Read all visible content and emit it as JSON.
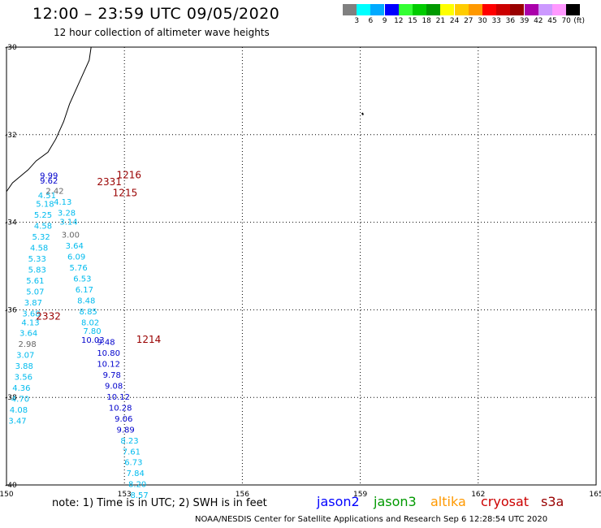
{
  "header": {
    "title": "12:00 – 23:59 UTC 09/05/2020",
    "subtitle": "12 hour collection of altimeter wave heights"
  },
  "color_scale": {
    "labels": [
      "3",
      "6",
      "9",
      "12",
      "15",
      "18",
      "21",
      "24",
      "27",
      "30",
      "33",
      "36",
      "39",
      "42",
      "45",
      "70"
    ],
    "unit": "(ft)",
    "colors": [
      "#808080",
      "#00ffff",
      "#00aaff",
      "#0000ff",
      "#33ff33",
      "#00cc00",
      "#009900",
      "#ffff00",
      "#ffcc00",
      "#ff9900",
      "#ff0000",
      "#cc0000",
      "#990000",
      "#aa00aa",
      "#cc99ff",
      "#ff99ff",
      "#000000"
    ]
  },
  "axes": {
    "lat_labels": [
      "-30",
      "-32",
      "-34",
      "-36",
      "-38",
      "-40"
    ],
    "lon_labels": [
      "150",
      "153",
      "156",
      "159",
      "162",
      "165"
    ]
  },
  "passes": [
    {
      "label": "1216",
      "lat": -33.0,
      "lon": 152.8,
      "color": "#990000"
    },
    {
      "label": "2331",
      "lat": -33.15,
      "lon": 152.3,
      "color": "#990000"
    },
    {
      "label": "1215",
      "lat": -33.4,
      "lon": 152.7,
      "color": "#990000"
    },
    {
      "label": "2332",
      "lat": -36.22,
      "lon": 150.75,
      "color": "#990000"
    },
    {
      "label": "1214",
      "lat": -36.75,
      "lon": 153.3,
      "color": "#990000"
    }
  ],
  "track_values": [
    {
      "v": "9.99",
      "lat": -33.0,
      "lon": 150.85,
      "c": "#0000cc"
    },
    {
      "v": "9.62",
      "lat": -33.12,
      "lon": 150.85,
      "c": "#0000cc"
    },
    {
      "v": "4.51",
      "lat": -33.45,
      "lon": 150.8,
      "c": "#00bbee"
    },
    {
      "v": "5.18",
      "lat": -33.65,
      "lon": 150.75,
      "c": "#00bbee"
    },
    {
      "v": "5.25",
      "lat": -33.9,
      "lon": 150.7,
      "c": "#00bbee"
    },
    {
      "v": "4.58",
      "lat": -34.15,
      "lon": 150.7,
      "c": "#00bbee"
    },
    {
      "v": "5.32",
      "lat": -34.4,
      "lon": 150.65,
      "c": "#00bbee"
    },
    {
      "v": "4.58",
      "lat": -34.65,
      "lon": 150.6,
      "c": "#00bbee"
    },
    {
      "v": "5.33",
      "lat": -34.9,
      "lon": 150.55,
      "c": "#00bbee"
    },
    {
      "v": "5.83",
      "lat": -35.15,
      "lon": 150.55,
      "c": "#00bbee"
    },
    {
      "v": "5.61",
      "lat": -35.4,
      "lon": 150.5,
      "c": "#00bbee"
    },
    {
      "v": "5.07",
      "lat": -35.65,
      "lon": 150.5,
      "c": "#00bbee"
    },
    {
      "v": "3.87",
      "lat": -35.9,
      "lon": 150.45,
      "c": "#00bbee"
    },
    {
      "v": "3.68",
      "lat": -36.15,
      "lon": 150.4,
      "c": "#00bbee"
    },
    {
      "v": "4.13",
      "lat": -36.35,
      "lon": 150.38,
      "c": "#00bbee"
    },
    {
      "v": "3.64",
      "lat": -36.6,
      "lon": 150.33,
      "c": "#00bbee"
    },
    {
      "v": "2.98",
      "lat": -36.85,
      "lon": 150.3,
      "c": "#666666"
    },
    {
      "v": "3.07",
      "lat": -37.1,
      "lon": 150.25,
      "c": "#00bbee"
    },
    {
      "v": "3.88",
      "lat": -37.35,
      "lon": 150.22,
      "c": "#00bbee"
    },
    {
      "v": "3.56",
      "lat": -37.6,
      "lon": 150.2,
      "c": "#00bbee"
    },
    {
      "v": "4.36",
      "lat": -37.85,
      "lon": 150.15,
      "c": "#00bbee"
    },
    {
      "v": "4.70",
      "lat": -38.1,
      "lon": 150.12,
      "c": "#00bbee"
    },
    {
      "v": "4.08",
      "lat": -38.35,
      "lon": 150.08,
      "c": "#00bbee"
    },
    {
      "v": "3.47",
      "lat": -38.6,
      "lon": 150.05,
      "c": "#00bbee"
    },
    {
      "v": "2.42",
      "lat": -33.35,
      "lon": 151.0,
      "c": "#666666"
    },
    {
      "v": "4.13",
      "lat": -33.6,
      "lon": 151.2,
      "c": "#00bbee"
    },
    {
      "v": "3.28",
      "lat": -33.85,
      "lon": 151.3,
      "c": "#00bbee"
    },
    {
      "v": "3.14",
      "lat": -34.05,
      "lon": 151.35,
      "c": "#00bbee"
    },
    {
      "v": "3.00",
      "lat": -34.35,
      "lon": 151.4,
      "c": "#666666"
    },
    {
      "v": "3.64",
      "lat": -34.6,
      "lon": 151.5,
      "c": "#00bbee"
    },
    {
      "v": "6.09",
      "lat": -34.85,
      "lon": 151.55,
      "c": "#00bbee"
    },
    {
      "v": "5.76",
      "lat": -35.1,
      "lon": 151.6,
      "c": "#00bbee"
    },
    {
      "v": "6.53",
      "lat": -35.35,
      "lon": 151.7,
      "c": "#00bbee"
    },
    {
      "v": "6.17",
      "lat": -35.6,
      "lon": 151.75,
      "c": "#00bbee"
    },
    {
      "v": "8.48",
      "lat": -35.85,
      "lon": 151.8,
      "c": "#00bbee"
    },
    {
      "v": "8.85",
      "lat": -36.1,
      "lon": 151.85,
      "c": "#00bbee"
    },
    {
      "v": "8.02",
      "lat": -36.35,
      "lon": 151.9,
      "c": "#00bbee"
    },
    {
      "v": "7.80",
      "lat": -36.55,
      "lon": 151.95,
      "c": "#00bbee"
    },
    {
      "v": "10.03",
      "lat": -36.75,
      "lon": 151.9,
      "c": "#0000cc"
    },
    {
      "v": "9.48",
      "lat": -36.8,
      "lon": 152.3,
      "c": "#0000cc"
    },
    {
      "v": "10.80",
      "lat": -37.05,
      "lon": 152.3,
      "c": "#0000cc"
    },
    {
      "v": "10.12",
      "lat": -37.3,
      "lon": 152.3,
      "c": "#0000cc"
    },
    {
      "v": "9.78",
      "lat": -37.55,
      "lon": 152.45,
      "c": "#0000cc"
    },
    {
      "v": "9.08",
      "lat": -37.8,
      "lon": 152.5,
      "c": "#0000cc"
    },
    {
      "v": "10.12",
      "lat": -38.05,
      "lon": 152.55,
      "c": "#0000cc"
    },
    {
      "v": "10.28",
      "lat": -38.3,
      "lon": 152.6,
      "c": "#0000cc"
    },
    {
      "v": "9.06",
      "lat": -38.55,
      "lon": 152.75,
      "c": "#0000cc"
    },
    {
      "v": "9.89",
      "lat": -38.8,
      "lon": 152.8,
      "c": "#0000cc"
    },
    {
      "v": "8.23",
      "lat": -39.05,
      "lon": 152.9,
      "c": "#00bbee"
    },
    {
      "v": "7.61",
      "lat": -39.3,
      "lon": 152.95,
      "c": "#00bbee"
    },
    {
      "v": "6.73",
      "lat": -39.55,
      "lon": 153.0,
      "c": "#00bbee"
    },
    {
      "v": "7.84",
      "lat": -39.8,
      "lon": 153.05,
      "c": "#00bbee"
    },
    {
      "v": "8.20",
      "lat": -40.05,
      "lon": 153.1,
      "c": "#00bbee"
    },
    {
      "v": "8.57",
      "lat": -40.3,
      "lon": 153.15,
      "c": "#00bbee"
    }
  ],
  "footer": {
    "note": "note: 1) Time is in UTC; 2) SWH is in feet",
    "satellites": [
      {
        "name": "jason2",
        "color": "#0000ff"
      },
      {
        "name": "jason3",
        "color": "#009900"
      },
      {
        "name": "altika",
        "color": "#ff9900"
      },
      {
        "name": "cryosat",
        "color": "#cc0000"
      },
      {
        "name": "s3a",
        "color": "#990000"
      }
    ],
    "credit": "NOAA/NESDIS Center for Satellite Applications and Research    Sep  6 12:28:54 UTC 2020"
  }
}
